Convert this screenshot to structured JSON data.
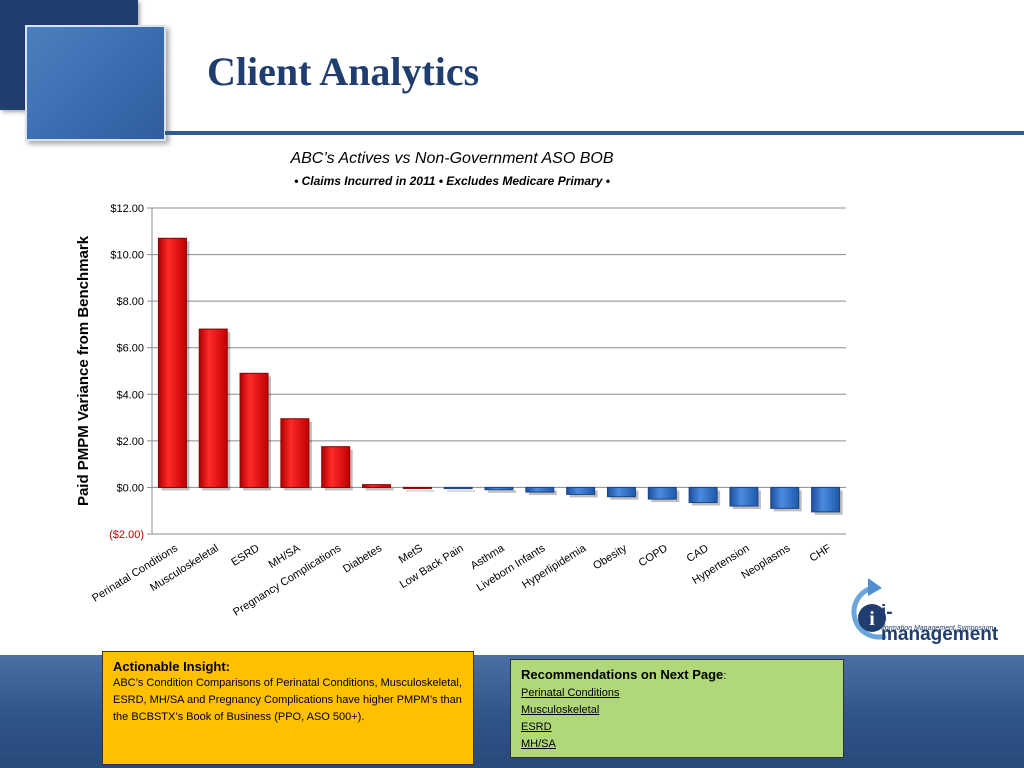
{
  "title": "Client Analytics",
  "chart_data": {
    "type": "bar",
    "title": "ABC’s Actives vs Non-Government ASO BOB",
    "subtitle": "• Claims Incurred in 2011 • Excludes Medicare Primary •",
    "xlabel": "",
    "ylabel": "Paid PMPM Variance from Benchmark",
    "ylim": [
      -2,
      12
    ],
    "yticks": [
      12,
      10,
      8,
      6,
      4,
      2,
      0,
      -2
    ],
    "ytick_labels": [
      "$12.00",
      "$10.00",
      "$8.00",
      "$6.00",
      "$4.00",
      "$2.00",
      "$0.00",
      "($2.00)"
    ],
    "negative_tick_color": "#c00000",
    "grid": true,
    "legend": "none",
    "categories": [
      "Perinatal Conditions",
      "Musculoskeletal",
      "ESRD",
      "MH/SA",
      "Pregnancy Complications",
      "Diabetes",
      "MetS",
      "Low Back Pain",
      "Asthma",
      "Liveborn Infants",
      "Hyperlipidemia",
      "Obesity",
      "COPD",
      "CAD",
      "Hypertension",
      "Neoplasms",
      "CHF"
    ],
    "values": [
      10.7,
      6.8,
      4.9,
      2.95,
      1.75,
      0.12,
      0.0,
      -0.05,
      -0.1,
      -0.2,
      -0.3,
      -0.4,
      -0.5,
      -0.65,
      -0.8,
      -0.9,
      -1.05
    ],
    "colors": {
      "positive": "#ff0000",
      "negative": "#2f6fcc"
    }
  },
  "insight": {
    "heading": "Actionable Insight:",
    "body": "ABC’s Condition Comparisons of Perinatal Conditions, Musculoskeletal, ESRD, MH/SA and Pregnancy Complications have higher PMPM’s than the BCBSTX’s Book of Business (PPO, ASO 500+)."
  },
  "recommendations": {
    "heading": "Recommendations on Next Page",
    "colon": ":",
    "items": [
      "Perinatal Conditions",
      "Musculoskeletal",
      "ESRD",
      "MH/SA"
    ]
  },
  "logo": {
    "wordmark": "i-management",
    "tagline": "Information Management Symposium"
  }
}
